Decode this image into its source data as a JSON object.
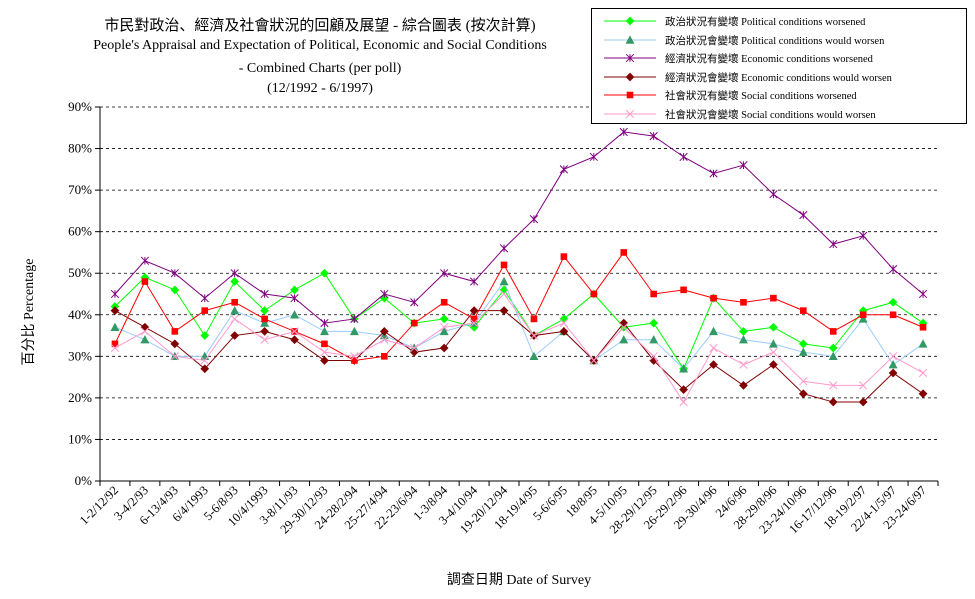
{
  "title": {
    "line1": "市民對政治、經濟及社會狀況的回顧及展望 - 綜合圖表 (按次計算)",
    "line2": "People's Appraisal and Expectation of Political, Economic and Social Conditions",
    "line3": "-  Combined Charts  (per poll)",
    "line4": "(12/1992 - 6/1997)"
  },
  "chart_data": {
    "type": "line",
    "xlabel": "調查日期 Date of Survey",
    "ylabel": "百分比 Percentage",
    "ylim": [
      0,
      90
    ],
    "yticks": [
      "0%",
      "10%",
      "20%",
      "30%",
      "40%",
      "50%",
      "60%",
      "70%",
      "80%",
      "90%"
    ],
    "grid": "horizontal dashed",
    "legend_position": "top-right",
    "categories": [
      "1-2/12/92",
      "3-4/2/93",
      "6-13/4/93",
      "6/4/1993",
      "5-6/8/93",
      "10/4/1993",
      "3-8/11/93",
      "29-30/12/93",
      "24-28/2/94",
      "25-27/4/94",
      "22-23/6/94",
      "1-3/8/94",
      "3-4/10/94",
      "19-20/12/94",
      "18-19/4/95",
      "5-6/6/95",
      "18/8/95",
      "4-5/10/95",
      "28-29/12/95",
      "26-29/2/96",
      "29-30/4/96",
      "24/6/96",
      "28-29/8/96",
      "23-24/10/96",
      "16-17/12/96",
      "18-19/2/97",
      "22/4-1/5/97",
      "23-24/6/97"
    ],
    "series": [
      {
        "name": "政治狀況有變壞 Political conditions worsened",
        "color": "#00ff00",
        "line_color": "#00ff00",
        "marker": "diamond",
        "values": [
          42,
          49,
          46,
          35,
          48,
          41,
          46,
          50,
          39,
          44,
          38,
          39,
          37,
          46,
          35,
          39,
          45,
          37,
          38,
          27,
          44,
          36,
          37,
          33,
          32,
          41,
          43,
          38
        ]
      },
      {
        "name": "政治狀況會變壞 Political conditions would worsen",
        "color": "#339966",
        "line_color": "#99ccff",
        "marker": "triangle",
        "values": [
          37,
          34,
          30,
          30,
          41,
          38,
          40,
          36,
          36,
          35,
          32,
          36,
          38,
          48,
          30,
          36,
          29,
          34,
          34,
          27,
          36,
          34,
          33,
          31,
          30,
          39,
          28,
          33
        ]
      },
      {
        "name": "經濟狀況有變壞 Economic conditions worsened",
        "color": "#800080",
        "line_color": "#800080",
        "marker": "asterisk",
        "values": [
          45,
          53,
          50,
          44,
          50,
          45,
          44,
          38,
          39,
          45,
          43,
          50,
          48,
          56,
          63,
          75,
          78,
          84,
          83,
          78,
          74,
          76,
          69,
          64,
          57,
          59,
          51,
          45
        ]
      },
      {
        "name": "經濟狀況會變壞 Economic conditions would worsen",
        "color": "#800000",
        "line_color": "#800000",
        "marker": "diamond",
        "values": [
          41,
          37,
          33,
          27,
          35,
          36,
          34,
          29,
          29,
          36,
          31,
          32,
          41,
          41,
          35,
          36,
          29,
          38,
          29,
          22,
          28,
          23,
          28,
          21,
          19,
          19,
          26,
          21
        ]
      },
      {
        "name": "社會狀況有變壞 Social conditions worsened",
        "color": "#ff0000",
        "line_color": "#ff0000",
        "marker": "square",
        "values": [
          33,
          48,
          36,
          41,
          43,
          39,
          36,
          33,
          29,
          30,
          38,
          43,
          39,
          52,
          39,
          54,
          45,
          55,
          45,
          46,
          44,
          43,
          44,
          41,
          36,
          40,
          40,
          37
        ]
      },
      {
        "name": "社會狀況會變壞 Social conditions would worsen",
        "color": "#ff99cc",
        "line_color": "#ff99cc",
        "marker": "x",
        "values": [
          32,
          36,
          30,
          29,
          39,
          34,
          36,
          31,
          30,
          34,
          32,
          37,
          38,
          45,
          35,
          38,
          29,
          37,
          30,
          19,
          32,
          28,
          31,
          24,
          23,
          23,
          30,
          26
        ]
      }
    ]
  }
}
